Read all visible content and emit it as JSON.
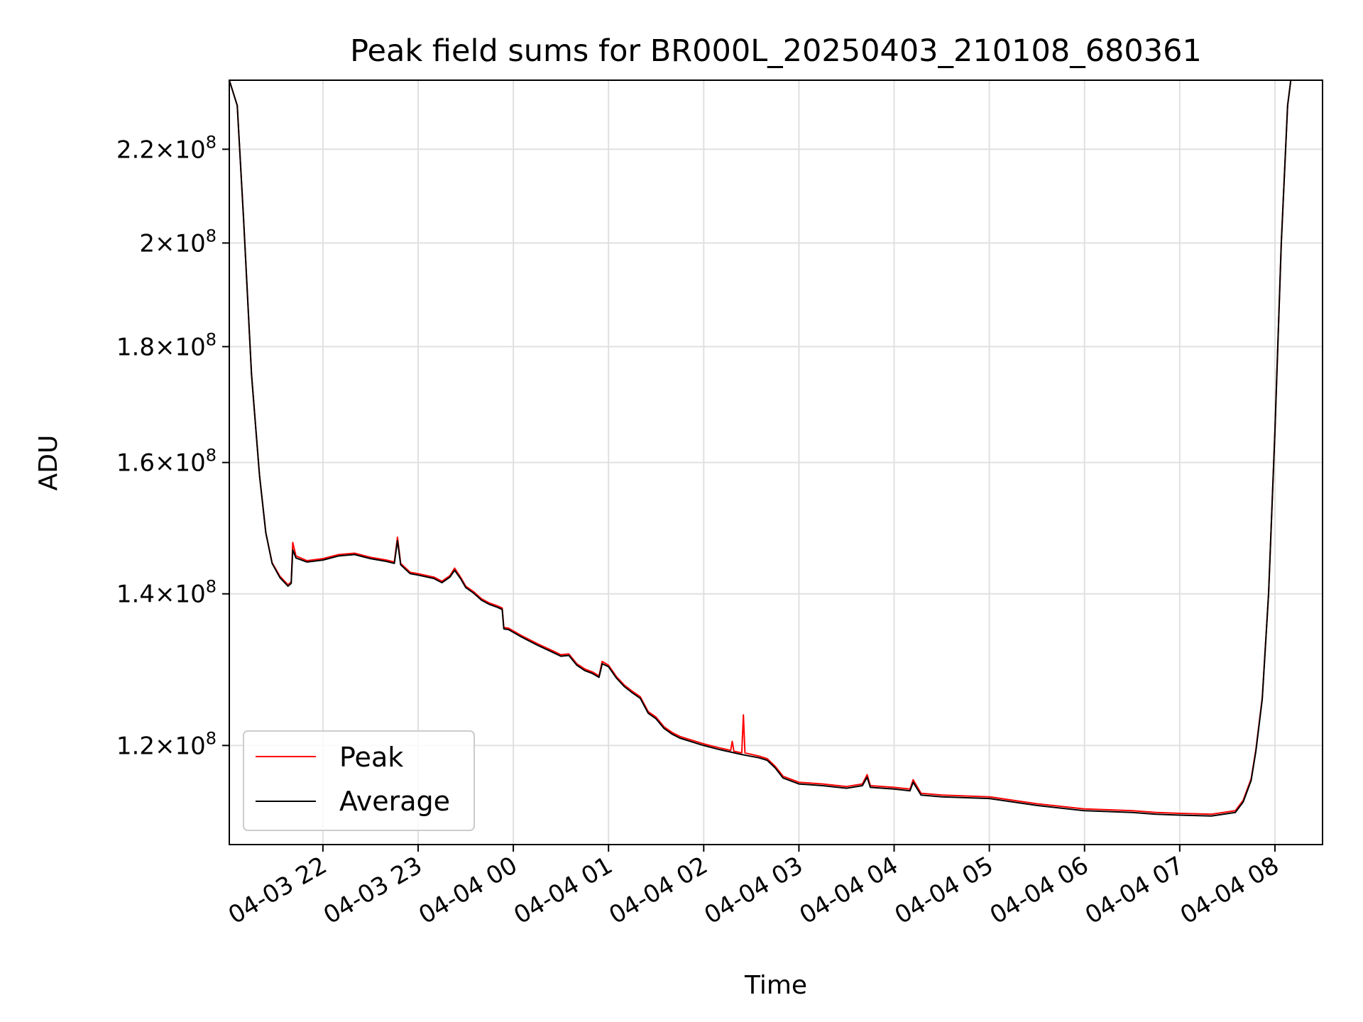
{
  "chart_data": {
    "type": "line",
    "title": "Peak field sums for BR000L_20250403_210108_680361",
    "xlabel": "Time",
    "ylabel": "ADU",
    "x_scale": "time",
    "y_scale": "log",
    "xlim": [
      "2025-04-03 21:01",
      "2025-04-04 08:30"
    ],
    "ylim": [
      108500000,
      236000000
    ],
    "grid": true,
    "legend_position": "lower-left",
    "x_ticks": [
      {
        "label": "04-03 22",
        "value": "2025-04-03 22:00"
      },
      {
        "label": "04-03 23",
        "value": "2025-04-03 23:00"
      },
      {
        "label": "04-04 00",
        "value": "2025-04-04 00:00"
      },
      {
        "label": "04-04 01",
        "value": "2025-04-04 01:00"
      },
      {
        "label": "04-04 02",
        "value": "2025-04-04 02:00"
      },
      {
        "label": "04-04 03",
        "value": "2025-04-04 03:00"
      },
      {
        "label": "04-04 04",
        "value": "2025-04-04 04:00"
      },
      {
        "label": "04-04 05",
        "value": "2025-04-04 05:00"
      },
      {
        "label": "04-04 06",
        "value": "2025-04-04 06:00"
      },
      {
        "label": "04-04 07",
        "value": "2025-04-04 07:00"
      },
      {
        "label": "04-04 08",
        "value": "2025-04-04 08:00"
      }
    ],
    "y_ticks": [
      {
        "mantissa": "1.2",
        "exponent": "8",
        "value": 120000000
      },
      {
        "mantissa": "1.4",
        "exponent": "8",
        "value": 140000000
      },
      {
        "mantissa": "1.6",
        "exponent": "8",
        "value": 160000000
      },
      {
        "mantissa": "1.8",
        "exponent": "8",
        "value": 180000000
      },
      {
        "mantissa": "2",
        "exponent": "8",
        "value": 200000000
      },
      {
        "mantissa": "2.2",
        "exponent": "8",
        "value": 220000000
      }
    ],
    "series": [
      {
        "name": "Peak",
        "color": "#ff0000",
        "points": [
          [
            "2025-04-03 21:01",
            236000000
          ],
          [
            "2025-04-03 21:06",
            230000000
          ],
          [
            "2025-04-03 21:10",
            205000000
          ],
          [
            "2025-04-03 21:15",
            175000000
          ],
          [
            "2025-04-03 21:20",
            158000000
          ],
          [
            "2025-04-03 21:24",
            149000000
          ],
          [
            "2025-04-03 21:28",
            144500000
          ],
          [
            "2025-04-03 21:33",
            142500000
          ],
          [
            "2025-04-03 21:38",
            141300000
          ],
          [
            "2025-04-03 21:40",
            141700000
          ],
          [
            "2025-04-03 21:41",
            147500000
          ],
          [
            "2025-04-03 21:43",
            145500000
          ],
          [
            "2025-04-03 21:50",
            144800000
          ],
          [
            "2025-04-03 22:00",
            145100000
          ],
          [
            "2025-04-03 22:10",
            145700000
          ],
          [
            "2025-04-03 22:20",
            145900000
          ],
          [
            "2025-04-03 22:30",
            145300000
          ],
          [
            "2025-04-03 22:40",
            144900000
          ],
          [
            "2025-04-03 22:45",
            144600000
          ],
          [
            "2025-04-03 22:47",
            148300000
          ],
          [
            "2025-04-03 22:49",
            144400000
          ],
          [
            "2025-04-03 22:55",
            143100000
          ],
          [
            "2025-04-03 23:00",
            142900000
          ],
          [
            "2025-04-03 23:10",
            142400000
          ],
          [
            "2025-04-03 23:15",
            141800000
          ],
          [
            "2025-04-03 23:20",
            142600000
          ],
          [
            "2025-04-03 23:23",
            143700000
          ],
          [
            "2025-04-03 23:27",
            142300000
          ],
          [
            "2025-04-03 23:30",
            141100000
          ],
          [
            "2025-04-03 23:35",
            140300000
          ],
          [
            "2025-04-03 23:40",
            139300000
          ],
          [
            "2025-04-03 23:45",
            138700000
          ],
          [
            "2025-04-03 23:50",
            138300000
          ],
          [
            "2025-04-03 23:53",
            138000000
          ],
          [
            "2025-04-03 23:54",
            135300000
          ],
          [
            "2025-04-03 23:57",
            135200000
          ],
          [
            "2025-04-04 00:05",
            134200000
          ],
          [
            "2025-04-04 00:15",
            133100000
          ],
          [
            "2025-04-04 00:25",
            132100000
          ],
          [
            "2025-04-04 00:30",
            131600000
          ],
          [
            "2025-04-04 00:35",
            131700000
          ],
          [
            "2025-04-04 00:40",
            130400000
          ],
          [
            "2025-04-04 00:45",
            129700000
          ],
          [
            "2025-04-04 00:50",
            129300000
          ],
          [
            "2025-04-04 00:54",
            128800000
          ],
          [
            "2025-04-04 00:56",
            130700000
          ],
          [
            "2025-04-04 01:00",
            130200000
          ],
          [
            "2025-04-04 01:05",
            128700000
          ],
          [
            "2025-04-04 01:10",
            127600000
          ],
          [
            "2025-04-04 01:15",
            126800000
          ],
          [
            "2025-04-04 01:20",
            126100000
          ],
          [
            "2025-04-04 01:25",
            124200000
          ],
          [
            "2025-04-04 01:30",
            123500000
          ],
          [
            "2025-04-04 01:35",
            122300000
          ],
          [
            "2025-04-04 01:40",
            121600000
          ],
          [
            "2025-04-04 01:45",
            121100000
          ],
          [
            "2025-04-04 01:50",
            120800000
          ],
          [
            "2025-04-04 02:00",
            120200000
          ],
          [
            "2025-04-04 02:10",
            119700000
          ],
          [
            "2025-04-04 02:17",
            119400000
          ],
          [
            "2025-04-04 02:18",
            120500000
          ],
          [
            "2025-04-04 02:19",
            119300000
          ],
          [
            "2025-04-04 02:24",
            119100000
          ],
          [
            "2025-04-04 02:25",
            123800000
          ],
          [
            "2025-04-04 02:26",
            119100000
          ],
          [
            "2025-04-04 02:35",
            118700000
          ],
          [
            "2025-04-04 02:40",
            118400000
          ],
          [
            "2025-04-04 02:45",
            117500000
          ],
          [
            "2025-04-04 02:50",
            116300000
          ],
          [
            "2025-04-04 03:00",
            115600000
          ],
          [
            "2025-04-04 03:15",
            115400000
          ],
          [
            "2025-04-04 03:30",
            115100000
          ],
          [
            "2025-04-04 03:40",
            115400000
          ],
          [
            "2025-04-04 03:43",
            116500000
          ],
          [
            "2025-04-04 03:45",
            115200000
          ],
          [
            "2025-04-04 04:00",
            115000000
          ],
          [
            "2025-04-04 04:10",
            114800000
          ],
          [
            "2025-04-04 04:12",
            115900000
          ],
          [
            "2025-04-04 04:17",
            114300000
          ],
          [
            "2025-04-04 04:30",
            114100000
          ],
          [
            "2025-04-04 05:00",
            113900000
          ],
          [
            "2025-04-04 05:15",
            113500000
          ],
          [
            "2025-04-04 05:30",
            113100000
          ],
          [
            "2025-04-04 05:45",
            112800000
          ],
          [
            "2025-04-04 06:00",
            112500000
          ],
          [
            "2025-04-04 06:30",
            112300000
          ],
          [
            "2025-04-04 06:45",
            112100000
          ],
          [
            "2025-04-04 07:00",
            112000000
          ],
          [
            "2025-04-04 07:20",
            111900000
          ],
          [
            "2025-04-04 07:35",
            112300000
          ],
          [
            "2025-04-04 07:40",
            113500000
          ],
          [
            "2025-04-04 07:45",
            116000000
          ],
          [
            "2025-04-04 07:48",
            119500000
          ],
          [
            "2025-04-04 07:52",
            126000000
          ],
          [
            "2025-04-04 07:56",
            140000000
          ],
          [
            "2025-04-04 08:00",
            165000000
          ],
          [
            "2025-04-04 08:04",
            200000000
          ],
          [
            "2025-04-04 08:08",
            230000000
          ],
          [
            "2025-04-04 08:10",
            236000000
          ],
          [
            "2025-04-04 08:30",
            236000000
          ]
        ]
      },
      {
        "name": "Average",
        "color": "#000000",
        "points": [
          [
            "2025-04-03 21:01",
            236000000
          ],
          [
            "2025-04-03 21:06",
            230000000
          ],
          [
            "2025-04-03 21:10",
            205000000
          ],
          [
            "2025-04-03 21:15",
            175000000
          ],
          [
            "2025-04-03 21:20",
            158000000
          ],
          [
            "2025-04-03 21:24",
            149000000
          ],
          [
            "2025-04-03 21:28",
            144400000
          ],
          [
            "2025-04-03 21:33",
            142300000
          ],
          [
            "2025-04-03 21:38",
            141100000
          ],
          [
            "2025-04-03 21:40",
            141500000
          ],
          [
            "2025-04-03 21:41",
            146400000
          ],
          [
            "2025-04-03 21:43",
            145200000
          ],
          [
            "2025-04-03 21:50",
            144600000
          ],
          [
            "2025-04-03 22:00",
            144900000
          ],
          [
            "2025-04-03 22:10",
            145500000
          ],
          [
            "2025-04-03 22:20",
            145700000
          ],
          [
            "2025-04-03 22:30",
            145100000
          ],
          [
            "2025-04-03 22:40",
            144700000
          ],
          [
            "2025-04-03 22:45",
            144400000
          ],
          [
            "2025-04-03 22:47",
            147800000
          ],
          [
            "2025-04-03 22:49",
            144200000
          ],
          [
            "2025-04-03 22:55",
            142900000
          ],
          [
            "2025-04-03 23:00",
            142700000
          ],
          [
            "2025-04-03 23:10",
            142200000
          ],
          [
            "2025-04-03 23:15",
            141600000
          ],
          [
            "2025-04-03 23:20",
            142400000
          ],
          [
            "2025-04-03 23:23",
            143400000
          ],
          [
            "2025-04-03 23:27",
            142100000
          ],
          [
            "2025-04-03 23:30",
            140900000
          ],
          [
            "2025-04-03 23:35",
            140100000
          ],
          [
            "2025-04-03 23:40",
            139100000
          ],
          [
            "2025-04-03 23:45",
            138500000
          ],
          [
            "2025-04-03 23:50",
            138100000
          ],
          [
            "2025-04-03 23:53",
            137800000
          ],
          [
            "2025-04-03 23:54",
            135100000
          ],
          [
            "2025-04-03 23:57",
            135000000
          ],
          [
            "2025-04-04 00:05",
            134000000
          ],
          [
            "2025-04-04 00:15",
            132900000
          ],
          [
            "2025-04-04 00:25",
            131900000
          ],
          [
            "2025-04-04 00:30",
            131400000
          ],
          [
            "2025-04-04 00:35",
            131500000
          ],
          [
            "2025-04-04 00:40",
            130200000
          ],
          [
            "2025-04-04 00:45",
            129500000
          ],
          [
            "2025-04-04 00:50",
            129100000
          ],
          [
            "2025-04-04 00:54",
            128600000
          ],
          [
            "2025-04-04 00:56",
            130400000
          ],
          [
            "2025-04-04 01:00",
            130000000
          ],
          [
            "2025-04-04 01:05",
            128500000
          ],
          [
            "2025-04-04 01:10",
            127400000
          ],
          [
            "2025-04-04 01:15",
            126600000
          ],
          [
            "2025-04-04 01:20",
            125900000
          ],
          [
            "2025-04-04 01:25",
            124000000
          ],
          [
            "2025-04-04 01:30",
            123300000
          ],
          [
            "2025-04-04 01:35",
            122100000
          ],
          [
            "2025-04-04 01:40",
            121400000
          ],
          [
            "2025-04-04 01:45",
            120900000
          ],
          [
            "2025-04-04 01:50",
            120600000
          ],
          [
            "2025-04-04 02:00",
            120000000
          ],
          [
            "2025-04-04 02:10",
            119500000
          ],
          [
            "2025-04-04 02:17",
            119200000
          ],
          [
            "2025-04-04 02:24",
            118900000
          ],
          [
            "2025-04-04 02:35",
            118500000
          ],
          [
            "2025-04-04 02:40",
            118200000
          ],
          [
            "2025-04-04 02:45",
            117300000
          ],
          [
            "2025-04-04 02:50",
            116100000
          ],
          [
            "2025-04-04 03:00",
            115400000
          ],
          [
            "2025-04-04 03:15",
            115200000
          ],
          [
            "2025-04-04 03:30",
            114900000
          ],
          [
            "2025-04-04 03:40",
            115200000
          ],
          [
            "2025-04-04 03:43",
            116200000
          ],
          [
            "2025-04-04 03:45",
            115000000
          ],
          [
            "2025-04-04 04:00",
            114800000
          ],
          [
            "2025-04-04 04:10",
            114600000
          ],
          [
            "2025-04-04 04:12",
            115600000
          ],
          [
            "2025-04-04 04:17",
            114100000
          ],
          [
            "2025-04-04 04:30",
            113900000
          ],
          [
            "2025-04-04 05:00",
            113700000
          ],
          [
            "2025-04-04 05:15",
            113300000
          ],
          [
            "2025-04-04 05:30",
            112900000
          ],
          [
            "2025-04-04 05:45",
            112600000
          ],
          [
            "2025-04-04 06:00",
            112300000
          ],
          [
            "2025-04-04 06:30",
            112100000
          ],
          [
            "2025-04-04 06:45",
            111900000
          ],
          [
            "2025-04-04 07:00",
            111800000
          ],
          [
            "2025-04-04 07:20",
            111700000
          ],
          [
            "2025-04-04 07:35",
            112100000
          ],
          [
            "2025-04-04 07:40",
            113300000
          ],
          [
            "2025-04-04 07:45",
            115800000
          ],
          [
            "2025-04-04 07:48",
            119300000
          ],
          [
            "2025-04-04 07:52",
            125800000
          ],
          [
            "2025-04-04 07:56",
            140000000
          ],
          [
            "2025-04-04 08:00",
            165000000
          ],
          [
            "2025-04-04 08:04",
            200000000
          ],
          [
            "2025-04-04 08:08",
            230000000
          ],
          [
            "2025-04-04 08:10",
            236000000
          ],
          [
            "2025-04-04 08:30",
            236000000
          ]
        ]
      }
    ]
  }
}
